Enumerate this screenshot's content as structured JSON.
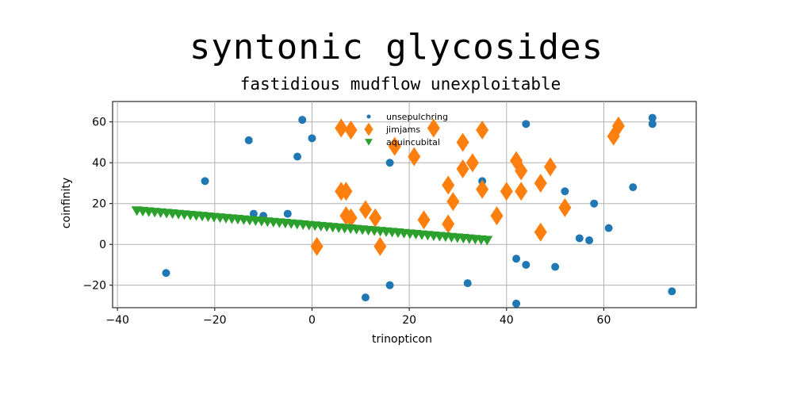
{
  "chart_data": {
    "type": "scatter",
    "title": "syntonic glycosides",
    "subtitle": "fastidious mudflow unexploitable",
    "xlabel": "trinopticon",
    "ylabel": "coinfinity",
    "xlim": [
      -41,
      79
    ],
    "ylim": [
      -31,
      70
    ],
    "xticks": [
      -40,
      -20,
      0,
      20,
      40,
      60
    ],
    "yticks": [
      -20,
      0,
      20,
      40,
      60
    ],
    "grid": true,
    "legend_position": "top-center",
    "series": [
      {
        "name": "unsepulchring",
        "marker": "circle",
        "color": "#1f77b4",
        "points": [
          [
            -2,
            61
          ],
          [
            0,
            52
          ],
          [
            -13,
            51
          ],
          [
            -3,
            43
          ],
          [
            -22,
            31
          ],
          [
            -12,
            15
          ],
          [
            -10,
            14
          ],
          [
            -5,
            15
          ],
          [
            -30,
            -14
          ],
          [
            16,
            40
          ],
          [
            17,
            47
          ],
          [
            11,
            -26
          ],
          [
            16,
            -20
          ],
          [
            44,
            59
          ],
          [
            70,
            62
          ],
          [
            70,
            59
          ],
          [
            32,
            -19
          ],
          [
            42,
            -29
          ],
          [
            42,
            -7
          ],
          [
            44,
            -10
          ],
          [
            50,
            -11
          ],
          [
            52,
            26
          ],
          [
            55,
            3
          ],
          [
            57,
            2
          ],
          [
            58,
            20
          ],
          [
            61,
            8
          ],
          [
            66,
            28
          ],
          [
            74,
            -23
          ],
          [
            35,
            31
          ]
        ]
      },
      {
        "name": "jimjams",
        "marker": "thin_diamond",
        "color": "#ff7f0e",
        "points": [
          [
            6,
            57
          ],
          [
            8,
            56
          ],
          [
            25,
            57
          ],
          [
            35,
            56
          ],
          [
            17,
            48
          ],
          [
            21,
            43
          ],
          [
            31,
            50
          ],
          [
            31,
            37
          ],
          [
            33,
            40
          ],
          [
            35,
            27
          ],
          [
            40,
            26
          ],
          [
            42,
            41
          ],
          [
            43,
            36
          ],
          [
            43,
            26
          ],
          [
            47,
            30
          ],
          [
            49,
            38
          ],
          [
            52,
            18
          ],
          [
            47,
            6
          ],
          [
            62,
            53
          ],
          [
            63,
            58
          ],
          [
            28,
            29
          ],
          [
            29,
            21
          ],
          [
            28,
            10
          ],
          [
            23,
            12
          ],
          [
            38,
            14
          ],
          [
            11,
            17
          ],
          [
            13,
            13
          ],
          [
            6,
            26
          ],
          [
            7,
            26
          ],
          [
            7,
            14
          ],
          [
            8,
            13
          ],
          [
            14,
            -1
          ],
          [
            1,
            -1
          ]
        ]
      },
      {
        "name": "aquincubital",
        "marker": "triangle_down",
        "color": "#2ca02c",
        "x_start": -36,
        "x_end": 36,
        "y_start": 16.5,
        "y_end": 2,
        "count": 60
      }
    ]
  }
}
